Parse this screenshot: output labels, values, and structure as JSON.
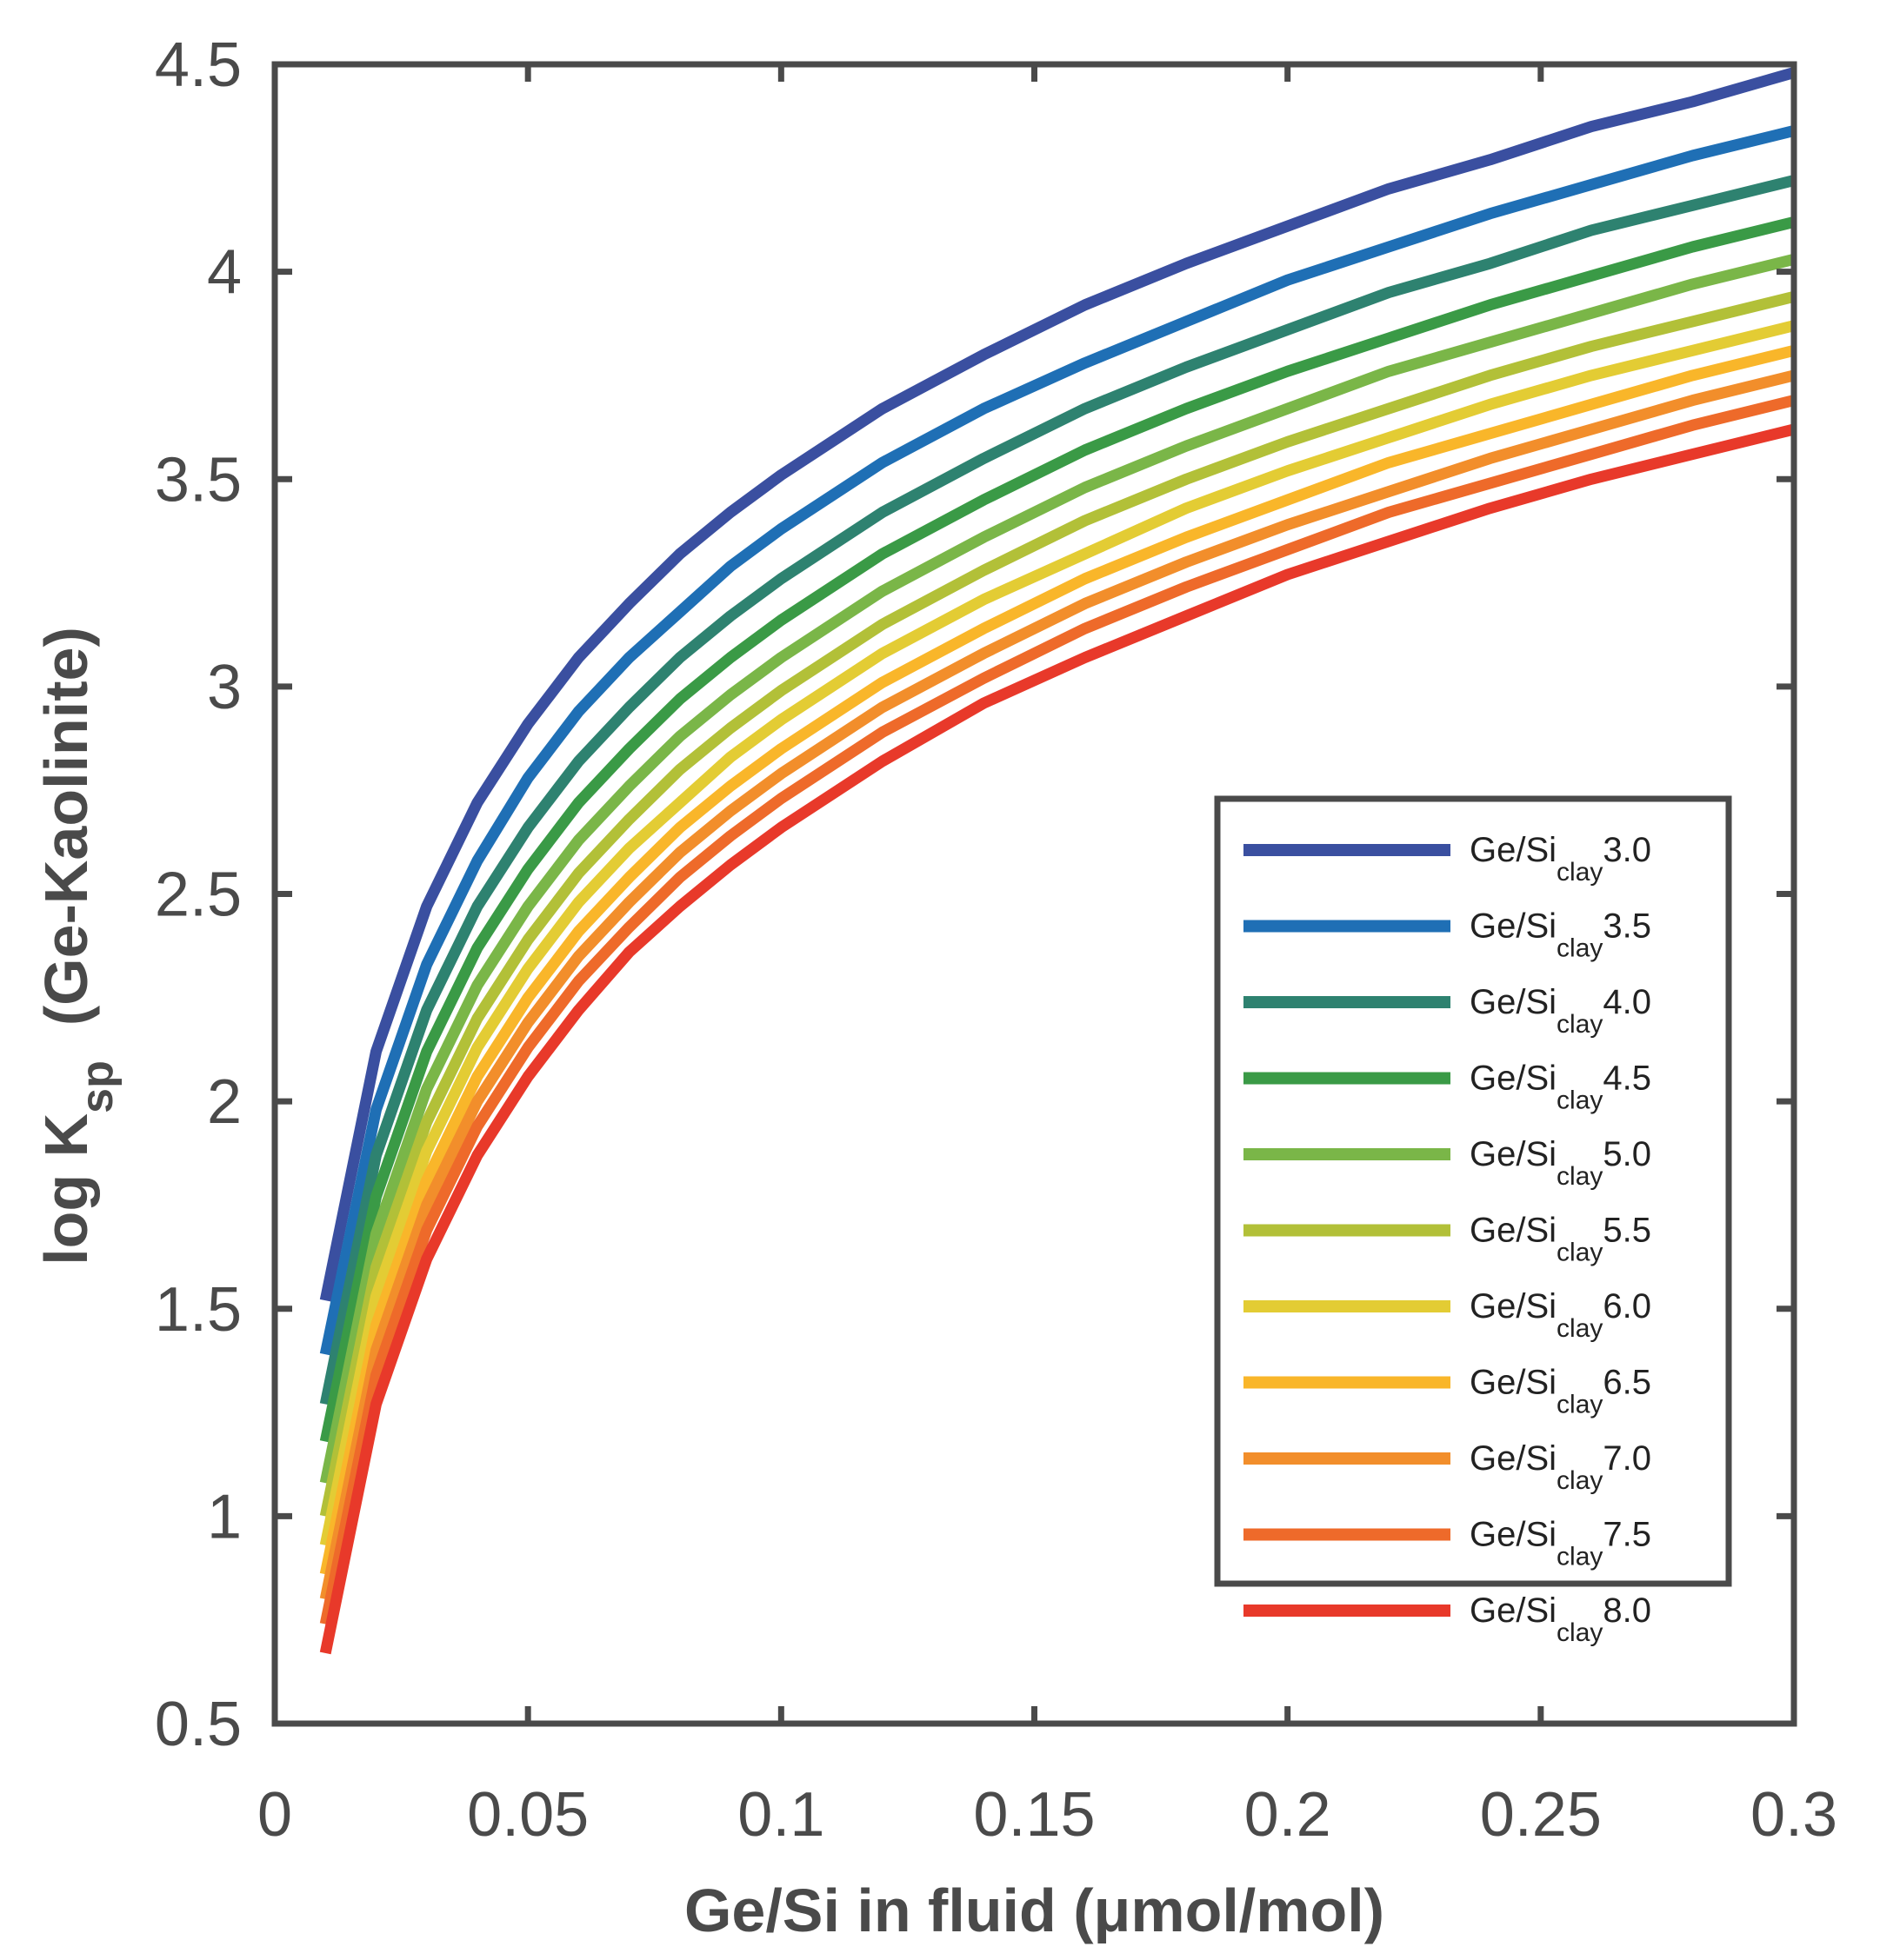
{
  "chart_data": {
    "type": "line",
    "xlabel": "Ge/Si in fluid (μmol/mol)",
    "ylabel": {
      "prefix": "log K",
      "sub": "sp",
      "suffix": "(Ge-Kaolinite)"
    },
    "xlim": [
      0,
      0.3
    ],
    "ylim": [
      0.5,
      4.5
    ],
    "xticks": [
      "0",
      "0.05",
      "0.1",
      "0.15",
      "0.2",
      "0.25",
      "0.3"
    ],
    "yticks": [
      "0.5",
      "1",
      "1.5",
      "2",
      "2.5",
      "3",
      "3.5",
      "4",
      "4.5"
    ],
    "grid": false,
    "legend_position": "bottom-right",
    "x": [
      0.01,
      0.02,
      0.03,
      0.04,
      0.05,
      0.06,
      0.07,
      0.08,
      0.09,
      0.1,
      0.12,
      0.14,
      0.16,
      0.18,
      0.2,
      0.22,
      0.24,
      0.26,
      0.28,
      0.3
    ],
    "series": [
      {
        "name": {
          "pre": "Ge/Si",
          "sub": "clay",
          "post": "3.0"
        },
        "color": "#3a4fa0",
        "values": [
          1.52,
          2.12,
          2.47,
          2.72,
          2.91,
          3.07,
          3.2,
          3.32,
          3.42,
          3.51,
          3.67,
          3.8,
          3.92,
          4.02,
          4.11,
          4.2,
          4.27,
          4.35,
          4.41,
          4.48
        ]
      },
      {
        "name": {
          "pre": "Ge/Si",
          "sub": "clay",
          "post": "3.5"
        },
        "color": "#1f6fb5",
        "values": [
          1.39,
          1.98,
          2.33,
          2.58,
          2.78,
          2.94,
          3.07,
          3.18,
          3.29,
          3.38,
          3.54,
          3.67,
          3.78,
          3.88,
          3.98,
          4.06,
          4.14,
          4.21,
          4.28,
          4.34
        ]
      },
      {
        "name": {
          "pre": "Ge/Si",
          "sub": "clay",
          "post": "4.0"
        },
        "color": "#2e8270",
        "values": [
          1.27,
          1.87,
          2.22,
          2.47,
          2.66,
          2.82,
          2.95,
          3.07,
          3.17,
          3.26,
          3.42,
          3.55,
          3.67,
          3.77,
          3.86,
          3.95,
          4.02,
          4.1,
          4.16,
          4.22
        ]
      },
      {
        "name": {
          "pre": "Ge/Si",
          "sub": "clay",
          "post": "4.5"
        },
        "color": "#3a9a46",
        "values": [
          1.18,
          1.77,
          2.12,
          2.37,
          2.56,
          2.72,
          2.85,
          2.97,
          3.07,
          3.16,
          3.32,
          3.45,
          3.57,
          3.67,
          3.76,
          3.84,
          3.92,
          3.99,
          4.06,
          4.12
        ]
      },
      {
        "name": {
          "pre": "Ge/Si",
          "sub": "clay",
          "post": "5.0"
        },
        "color": "#7ab648",
        "values": [
          1.08,
          1.68,
          2.03,
          2.28,
          2.47,
          2.63,
          2.76,
          2.88,
          2.98,
          3.07,
          3.23,
          3.36,
          3.48,
          3.58,
          3.67,
          3.76,
          3.83,
          3.9,
          3.97,
          4.03
        ]
      },
      {
        "name": {
          "pre": "Ge/Si",
          "sub": "clay",
          "post": "5.5"
        },
        "color": "#b2c038",
        "values": [
          1.0,
          1.6,
          1.95,
          2.2,
          2.39,
          2.55,
          2.68,
          2.8,
          2.9,
          2.99,
          3.15,
          3.28,
          3.4,
          3.5,
          3.59,
          3.67,
          3.75,
          3.82,
          3.88,
          3.94
        ]
      },
      {
        "name": {
          "pre": "Ge/Si",
          "sub": "clay",
          "post": "6.0"
        },
        "color": "#e3cc34",
        "values": [
          0.93,
          1.53,
          1.88,
          2.13,
          2.32,
          2.48,
          2.61,
          2.72,
          2.83,
          2.92,
          3.08,
          3.21,
          3.32,
          3.43,
          3.52,
          3.6,
          3.68,
          3.75,
          3.81,
          3.87
        ]
      },
      {
        "name": {
          "pre": "Ge/Si",
          "sub": "clay",
          "post": "6.5"
        },
        "color": "#f9b62a",
        "values": [
          0.86,
          1.46,
          1.81,
          2.06,
          2.25,
          2.41,
          2.54,
          2.66,
          2.76,
          2.85,
          3.01,
          3.14,
          3.26,
          3.36,
          3.45,
          3.54,
          3.61,
          3.68,
          3.75,
          3.81
        ]
      },
      {
        "name": {
          "pre": "Ge/Si",
          "sub": "clay",
          "post": "7.0"
        },
        "color": "#f28e2b",
        "values": [
          0.8,
          1.4,
          1.75,
          2.0,
          2.19,
          2.35,
          2.48,
          2.6,
          2.7,
          2.79,
          2.95,
          3.08,
          3.2,
          3.3,
          3.39,
          3.47,
          3.55,
          3.62,
          3.69,
          3.75
        ]
      },
      {
        "name": {
          "pre": "Ge/Si",
          "sub": "clay",
          "post": "7.5"
        },
        "color": "#ee6a2a",
        "values": [
          0.74,
          1.34,
          1.69,
          1.94,
          2.13,
          2.29,
          2.42,
          2.54,
          2.64,
          2.73,
          2.89,
          3.02,
          3.14,
          3.24,
          3.33,
          3.42,
          3.49,
          3.56,
          3.63,
          3.69
        ]
      },
      {
        "name": {
          "pre": "Ge/Si",
          "sub": "clay",
          "post": "8.0"
        },
        "color": "#e8392a",
        "values": [
          0.67,
          1.27,
          1.62,
          1.87,
          2.06,
          2.22,
          2.36,
          2.47,
          2.57,
          2.66,
          2.82,
          2.96,
          3.07,
          3.17,
          3.27,
          3.35,
          3.43,
          3.5,
          3.56,
          3.62
        ]
      }
    ]
  }
}
